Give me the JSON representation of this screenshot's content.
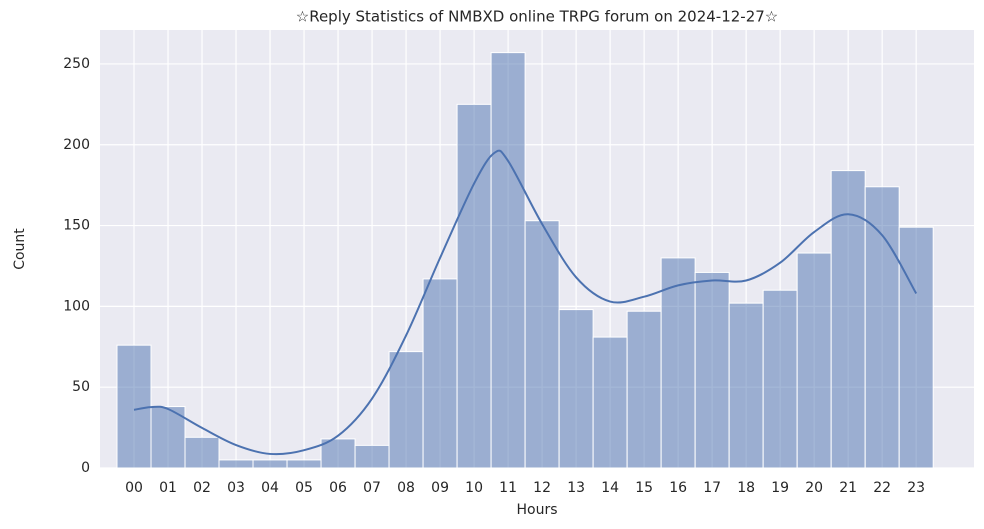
{
  "chart_data": {
    "type": "histogram",
    "title": "☆Reply Statistics of NMBXD online TRPG forum on 2024-12-27☆",
    "xlabel": "Hours",
    "ylabel": "Count",
    "bins": [
      -0.5,
      0.5,
      1.5,
      2.5,
      3.5,
      4.5,
      5.5,
      6.5,
      7.5,
      8.5,
      9.5,
      10.5,
      11.5,
      12.5,
      13.5,
      14.5,
      15.5,
      16.5,
      17.5,
      18.5,
      19.5,
      20.5,
      21.5,
      22.5,
      23.5
    ],
    "values": [
      76,
      38,
      19,
      5,
      5,
      5,
      18,
      14,
      72,
      117,
      225,
      257,
      153,
      98,
      81,
      97,
      130,
      121,
      102,
      110,
      133,
      184,
      174,
      149
    ],
    "color": "#4c72b0",
    "kde": {
      "x": [
        0,
        0.5,
        1,
        2,
        3,
        4,
        5,
        6,
        7,
        8,
        9,
        10,
        10.6,
        11,
        12,
        13,
        14,
        15,
        16,
        17,
        18,
        19,
        20,
        21,
        22,
        23
      ],
      "values": [
        36,
        37.7,
        36.5,
        24.8,
        14.2,
        8.7,
        11,
        20,
        43,
        82,
        130,
        176,
        195,
        190,
        151,
        118,
        103,
        106,
        113,
        116,
        116,
        127,
        146,
        157,
        144,
        108
      ]
    },
    "xlim": [
      -1,
      24.7
    ],
    "ylim": [
      0,
      271
    ],
    "xticks": [
      {
        "value": 0,
        "label": "00"
      },
      {
        "value": 1,
        "label": "01"
      },
      {
        "value": 2,
        "label": "02"
      },
      {
        "value": 3,
        "label": "03"
      },
      {
        "value": 4,
        "label": "04"
      },
      {
        "value": 5,
        "label": "05"
      },
      {
        "value": 6,
        "label": "06"
      },
      {
        "value": 7,
        "label": "07"
      },
      {
        "value": 8,
        "label": "08"
      },
      {
        "value": 9,
        "label": "09"
      },
      {
        "value": 10,
        "label": "10"
      },
      {
        "value": 11,
        "label": "11"
      },
      {
        "value": 12,
        "label": "12"
      },
      {
        "value": 13,
        "label": "13"
      },
      {
        "value": 14,
        "label": "14"
      },
      {
        "value": 15,
        "label": "15"
      },
      {
        "value": 16,
        "label": "16"
      },
      {
        "value": 17,
        "label": "17"
      },
      {
        "value": 18,
        "label": "18"
      },
      {
        "value": 19,
        "label": "19"
      },
      {
        "value": 20,
        "label": "20"
      },
      {
        "value": 21,
        "label": "21"
      },
      {
        "value": 22,
        "label": "22"
      },
      {
        "value": 23,
        "label": "23"
      }
    ],
    "yticks": [
      0,
      50,
      100,
      150,
      200,
      250
    ],
    "grid": true
  }
}
